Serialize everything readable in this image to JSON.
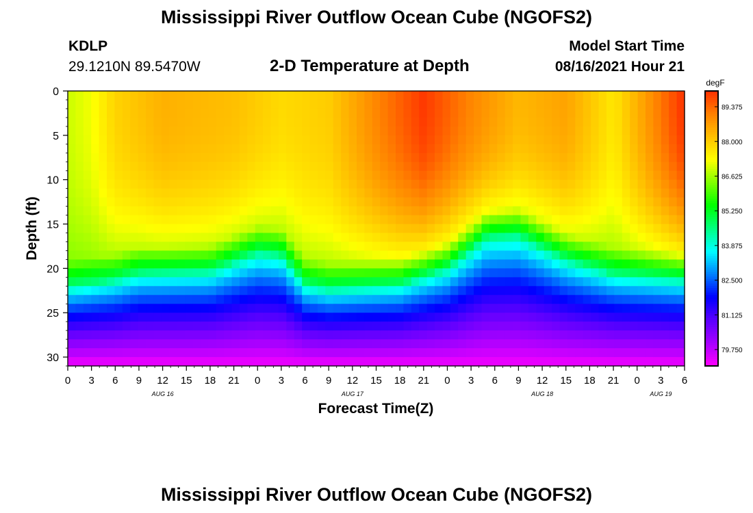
{
  "header": {
    "title": "Mississippi River Outflow Ocean Cube (NGOFS2)",
    "station_id": "KDLP",
    "station_coords": "29.1210N  89.5470W",
    "plot_title": "2-D Temperature at Depth",
    "start_label": "Model Start Time",
    "start_value": "08/16/2021 Hour 21"
  },
  "footer": {
    "title": "Mississippi River Outflow Ocean Cube (NGOFS2)"
  },
  "chart_data": {
    "type": "heatmap",
    "xlabel": "Forecast Time(Z)",
    "ylabel": "Depth (ft)",
    "x_hours_range": [
      0,
      78
    ],
    "y_depth_range": [
      0,
      31
    ],
    "y_inverted": true,
    "x_tick_labels": [
      "0",
      "3",
      "6",
      "9",
      "12",
      "15",
      "18",
      "21",
      "0",
      "3",
      "6",
      "9",
      "12",
      "15",
      "18",
      "21",
      "0",
      "3",
      "6",
      "9",
      "12",
      "15",
      "18",
      "21",
      "0",
      "3",
      "6"
    ],
    "y_tick_labels": [
      "0",
      "5",
      "10",
      "15",
      "20",
      "25",
      "30"
    ],
    "day_labels": [
      {
        "label": "AUG 16",
        "hour": 12
      },
      {
        "label": "AUG 17",
        "hour": 36
      },
      {
        "label": "AUG 18",
        "hour": 60
      },
      {
        "label": "AUG 19",
        "hour": 75
      }
    ],
    "colorbar": {
      "unit": "degF",
      "min": 79.1,
      "max": 90.0,
      "tick_labels": [
        "89.375",
        "88.000",
        "86.625",
        "85.250",
        "83.875",
        "82.500",
        "81.125",
        "79.750"
      ],
      "tick_values": [
        89.375,
        88.0,
        86.625,
        85.25,
        83.875,
        82.5,
        81.125,
        79.75
      ],
      "colors": [
        "#ff00ff",
        "#a600ff",
        "#5a00ff",
        "#0000ff",
        "#0080ff",
        "#00ffff",
        "#00ff80",
        "#00ff00",
        "#80ff00",
        "#ffff00",
        "#ffc000",
        "#ff8000",
        "#ff3000"
      ]
    },
    "thermocline_depth_ft_by_hour": [
      {
        "hour": 0,
        "depth": 22
      },
      {
        "hour": 6,
        "depth": 21.3
      },
      {
        "hour": 9,
        "depth": 20.5
      },
      {
        "hour": 18,
        "depth": 20.3
      },
      {
        "hour": 24,
        "depth": 18.2
      },
      {
        "hour": 27,
        "depth": 18.5
      },
      {
        "hour": 30,
        "depth": 21.8
      },
      {
        "hour": 33,
        "depth": 22.3
      },
      {
        "hour": 42,
        "depth": 21.8
      },
      {
        "hour": 48,
        "depth": 20.0
      },
      {
        "hour": 53,
        "depth": 16.5
      },
      {
        "hour": 57,
        "depth": 16.3
      },
      {
        "hour": 63,
        "depth": 19.0
      },
      {
        "hour": 69,
        "depth": 20.6
      },
      {
        "hour": 78,
        "depth": 21.2
      }
    ],
    "surface_temp_degF_by_hour": [
      {
        "hour": 0,
        "temp": 86.9
      },
      {
        "hour": 3,
        "temp": 87.2
      },
      {
        "hour": 6,
        "temp": 87.9
      },
      {
        "hour": 12,
        "temp": 88.4
      },
      {
        "hour": 21,
        "temp": 88.2
      },
      {
        "hour": 27,
        "temp": 87.8
      },
      {
        "hour": 33,
        "temp": 88.0
      },
      {
        "hour": 39,
        "temp": 89.0
      },
      {
        "hour": 45,
        "temp": 89.9
      },
      {
        "hour": 51,
        "temp": 89.0
      },
      {
        "hour": 57,
        "temp": 88.3
      },
      {
        "hour": 63,
        "temp": 88.6
      },
      {
        "hour": 69,
        "temp": 87.6
      },
      {
        "hour": 72,
        "temp": 88.4
      },
      {
        "hour": 78,
        "temp": 90.0
      }
    ],
    "bottom_temp_degF": 79.2
  }
}
